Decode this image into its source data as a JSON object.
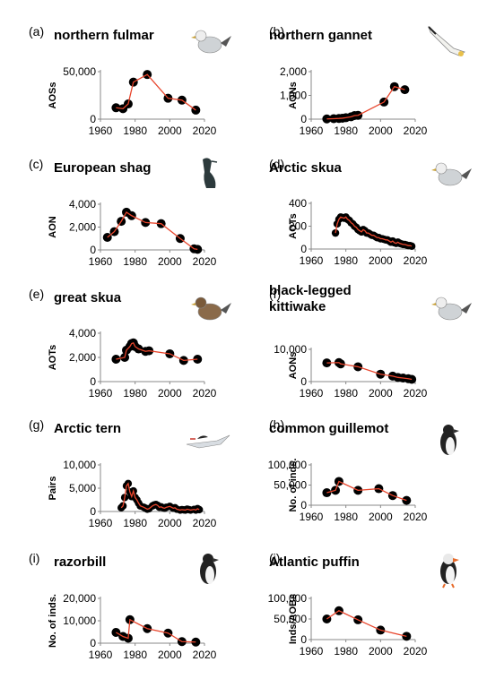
{
  "chart_data": [
    {
      "label": "(a)",
      "title": "northern fulmar",
      "ylabel": "AOSs",
      "type": "line",
      "icon": "fulmar-icon",
      "ylim": [
        0,
        50000
      ],
      "yticks": [
        "0",
        "50,000"
      ],
      "ytick_values": [
        0,
        50000
      ],
      "xlim": [
        1960,
        2020
      ],
      "xticks": [
        "1960",
        "1980",
        "2000",
        "2020"
      ],
      "points": [
        [
          1969,
          12000
        ],
        [
          1973,
          11000
        ],
        [
          1976,
          16000
        ],
        [
          1979,
          39000
        ],
        [
          1987,
          47000
        ],
        [
          1999,
          22000
        ],
        [
          2007,
          20000
        ],
        [
          2015,
          9500
        ]
      ]
    },
    {
      "label": "(b)",
      "title": "northern gannet",
      "ylabel": "AONs",
      "type": "line",
      "icon": "gannet-icon",
      "ylim": [
        0,
        2000
      ],
      "yticks": [
        "0",
        "1,000",
        "2,000"
      ],
      "ytick_values": [
        0,
        1000,
        2000
      ],
      "xlim": [
        1960,
        2020
      ],
      "xticks": [
        "1960",
        "1980",
        "2000",
        "2020"
      ],
      "points": [
        [
          1969,
          10
        ],
        [
          1973,
          20
        ],
        [
          1976,
          30
        ],
        [
          1978,
          40
        ],
        [
          1980,
          60
        ],
        [
          1983,
          100
        ],
        [
          1985,
          150
        ],
        [
          1987,
          160
        ],
        [
          2002,
          720
        ],
        [
          2008,
          1370
        ],
        [
          2014,
          1240
        ]
      ]
    },
    {
      "label": "(c)",
      "title": "European shag",
      "ylabel": "AON",
      "type": "line",
      "icon": "shag-icon",
      "ylim": [
        0,
        4000
      ],
      "yticks": [
        "0",
        "2,000",
        "4,000"
      ],
      "ytick_values": [
        0,
        2000,
        4000
      ],
      "xlim": [
        1960,
        2020
      ],
      "xticks": [
        "1960",
        "1980",
        "2000",
        "2020"
      ],
      "points": [
        [
          1964,
          1100
        ],
        [
          1968,
          1600
        ],
        [
          1972,
          2500
        ],
        [
          1975,
          3300
        ],
        [
          1978,
          3000
        ],
        [
          1986,
          2400
        ],
        [
          1995,
          2300
        ],
        [
          2006,
          1000
        ],
        [
          2014,
          100
        ],
        [
          2016,
          50
        ]
      ]
    },
    {
      "label": "(d)",
      "title": "Arctic skua",
      "ylabel": "AOTs",
      "type": "line",
      "icon": "arctic-skua-icon",
      "ylim": [
        0,
        400
      ],
      "yticks": [
        "0",
        "200",
        "400"
      ],
      "ytick_values": [
        0,
        200,
        400
      ],
      "xlim": [
        1960,
        2020
      ],
      "xticks": [
        "1960",
        "1980",
        "2000",
        "2020"
      ],
      "points": [
        [
          1974,
          140
        ],
        [
          1975,
          220
        ],
        [
          1976,
          260
        ],
        [
          1977,
          280
        ],
        [
          1978,
          275
        ],
        [
          1979,
          270
        ],
        [
          1980,
          280
        ],
        [
          1981,
          260
        ],
        [
          1982,
          250
        ],
        [
          1983,
          230
        ],
        [
          1984,
          220
        ],
        [
          1985,
          200
        ],
        [
          1986,
          190
        ],
        [
          1987,
          170
        ],
        [
          1988,
          160
        ],
        [
          1989,
          150
        ],
        [
          1990,
          170
        ],
        [
          1991,
          160
        ],
        [
          1992,
          140
        ],
        [
          1993,
          140
        ],
        [
          1994,
          130
        ],
        [
          1995,
          120
        ],
        [
          1996,
          120
        ],
        [
          1997,
          110
        ],
        [
          1998,
          100
        ],
        [
          1999,
          100
        ],
        [
          2000,
          90
        ],
        [
          2001,
          90
        ],
        [
          2002,
          85
        ],
        [
          2003,
          80
        ],
        [
          2004,
          80
        ],
        [
          2005,
          70
        ],
        [
          2006,
          60
        ],
        [
          2007,
          70
        ],
        [
          2008,
          55
        ],
        [
          2009,
          50
        ],
        [
          2010,
          60
        ],
        [
          2011,
          50
        ],
        [
          2012,
          45
        ],
        [
          2013,
          40
        ],
        [
          2014,
          40
        ],
        [
          2015,
          35
        ],
        [
          2016,
          30
        ],
        [
          2017,
          30
        ],
        [
          2018,
          25
        ]
      ]
    },
    {
      "label": "(e)",
      "title": "great skua",
      "ylabel": "AOTs",
      "type": "line",
      "icon": "great-skua-icon",
      "ylim": [
        0,
        4000
      ],
      "yticks": [
        "0",
        "2,000",
        "4,000"
      ],
      "ytick_values": [
        0,
        2000,
        4000
      ],
      "xlim": [
        1960,
        2020
      ],
      "xticks": [
        "1960",
        "1980",
        "2000",
        "2020"
      ],
      "points": [
        [
          1969,
          1850
        ],
        [
          1974,
          2000
        ],
        [
          1975,
          2600
        ],
        [
          1977,
          2900
        ],
        [
          1978,
          3150
        ],
        [
          1979,
          3200
        ],
        [
          1980,
          2900
        ],
        [
          1982,
          2700
        ],
        [
          1986,
          2500
        ],
        [
          1988,
          2550
        ],
        [
          2000,
          2300
        ],
        [
          2008,
          1750
        ],
        [
          2016,
          1850
        ]
      ]
    },
    {
      "label": "(f)",
      "title": "black-legged kittiwake",
      "ylabel": "AONs",
      "type": "line",
      "icon": "kittiwake-icon",
      "ylim": [
        0,
        10000
      ],
      "yticks": [
        "0",
        "10,000"
      ],
      "ytick_values": [
        0,
        10000
      ],
      "xlim": [
        1960,
        2020
      ],
      "xticks": [
        "1960",
        "1980",
        "2000",
        "2020"
      ],
      "points": [
        [
          1969,
          5800
        ],
        [
          1976,
          5900
        ],
        [
          1977,
          5500
        ],
        [
          1987,
          4600
        ],
        [
          2000,
          2300
        ],
        [
          2007,
          1700
        ],
        [
          2010,
          1300
        ],
        [
          2013,
          1100
        ],
        [
          2016,
          900
        ],
        [
          2018,
          700
        ]
      ]
    },
    {
      "label": "(g)",
      "title": "Arctic tern",
      "ylabel": "Pairs",
      "type": "line",
      "icon": "tern-icon",
      "ylim": [
        0,
        10000
      ],
      "yticks": [
        "0",
        "5,000",
        "10,000"
      ],
      "ytick_values": [
        0,
        5000,
        10000
      ],
      "xlim": [
        1960,
        2020
      ],
      "xticks": [
        "1960",
        "1980",
        "2000",
        "2020"
      ],
      "points": [
        [
          1972,
          800
        ],
        [
          1973,
          1200
        ],
        [
          1974,
          3000
        ],
        [
          1975,
          5500
        ],
        [
          1976,
          6000
        ],
        [
          1977,
          4200
        ],
        [
          1978,
          3200
        ],
        [
          1979,
          4400
        ],
        [
          1980,
          3000
        ],
        [
          1981,
          2500
        ],
        [
          1982,
          1800
        ],
        [
          1983,
          1200
        ],
        [
          1985,
          900
        ],
        [
          1986,
          700
        ],
        [
          1987,
          500
        ],
        [
          1988,
          600
        ],
        [
          1990,
          1200
        ],
        [
          1991,
          1400
        ],
        [
          1992,
          1500
        ],
        [
          1993,
          1300
        ],
        [
          1994,
          900
        ],
        [
          1995,
          1000
        ],
        [
          1996,
          800
        ],
        [
          1997,
          700
        ],
        [
          1998,
          900
        ],
        [
          2000,
          1100
        ],
        [
          2002,
          700
        ],
        [
          2003,
          800
        ],
        [
          2004,
          500
        ],
        [
          2006,
          300
        ],
        [
          2007,
          400
        ],
        [
          2008,
          350
        ],
        [
          2009,
          300
        ],
        [
          2010,
          500
        ],
        [
          2011,
          400
        ],
        [
          2012,
          300
        ],
        [
          2014,
          450
        ],
        [
          2015,
          300
        ],
        [
          2016,
          600
        ],
        [
          2017,
          400
        ]
      ]
    },
    {
      "label": "(h)",
      "title": "common guillemot",
      "ylabel": "No. of inds.",
      "type": "line",
      "icon": "guillemot-icon",
      "ylim": [
        0,
        100000
      ],
      "yticks": [
        "0",
        "50,000",
        "100,000"
      ],
      "ytick_values": [
        0,
        50000,
        100000
      ],
      "xlim": [
        1960,
        2020
      ],
      "xticks": [
        "1960",
        "1980",
        "2000",
        "2020"
      ],
      "points": [
        [
          1969,
          31000
        ],
        [
          1974,
          37000
        ],
        [
          1976,
          59000
        ],
        [
          1987,
          37000
        ],
        [
          1999,
          41000
        ],
        [
          2007,
          24000
        ],
        [
          2015,
          12000
        ]
      ]
    },
    {
      "label": "(i)",
      "title": "razorbill",
      "ylabel": "No. of inds.",
      "type": "line",
      "icon": "razorbill-icon",
      "ylim": [
        0,
        20000
      ],
      "yticks": [
        "0",
        "10,000",
        "20,000"
      ],
      "ytick_values": [
        0,
        10000,
        20000
      ],
      "xlim": [
        1960,
        2020
      ],
      "xticks": [
        "1960",
        "1980",
        "2000",
        "2020"
      ],
      "points": [
        [
          1969,
          4800
        ],
        [
          1973,
          3000
        ],
        [
          1976,
          2200
        ],
        [
          1977,
          10500
        ],
        [
          1987,
          6500
        ],
        [
          1999,
          4500
        ],
        [
          2007,
          700
        ],
        [
          2015,
          500
        ]
      ]
    },
    {
      "label": "(j)",
      "title": "Atlantic puffin",
      "ylabel": "Inds/AOBs",
      "type": "line",
      "icon": "puffin-icon",
      "ylim": [
        0,
        100000
      ],
      "yticks": [
        "0",
        "50,000",
        "100,000"
      ],
      "ytick_values": [
        0,
        50000,
        100000
      ],
      "xlim": [
        1960,
        2020
      ],
      "xticks": [
        "1960",
        "1980",
        "2000",
        "2020"
      ],
      "points": [
        [
          1969,
          50000
        ],
        [
          1976,
          70000
        ],
        [
          1987,
          48000
        ],
        [
          2000,
          23000
        ],
        [
          2015,
          8000
        ]
      ]
    }
  ]
}
